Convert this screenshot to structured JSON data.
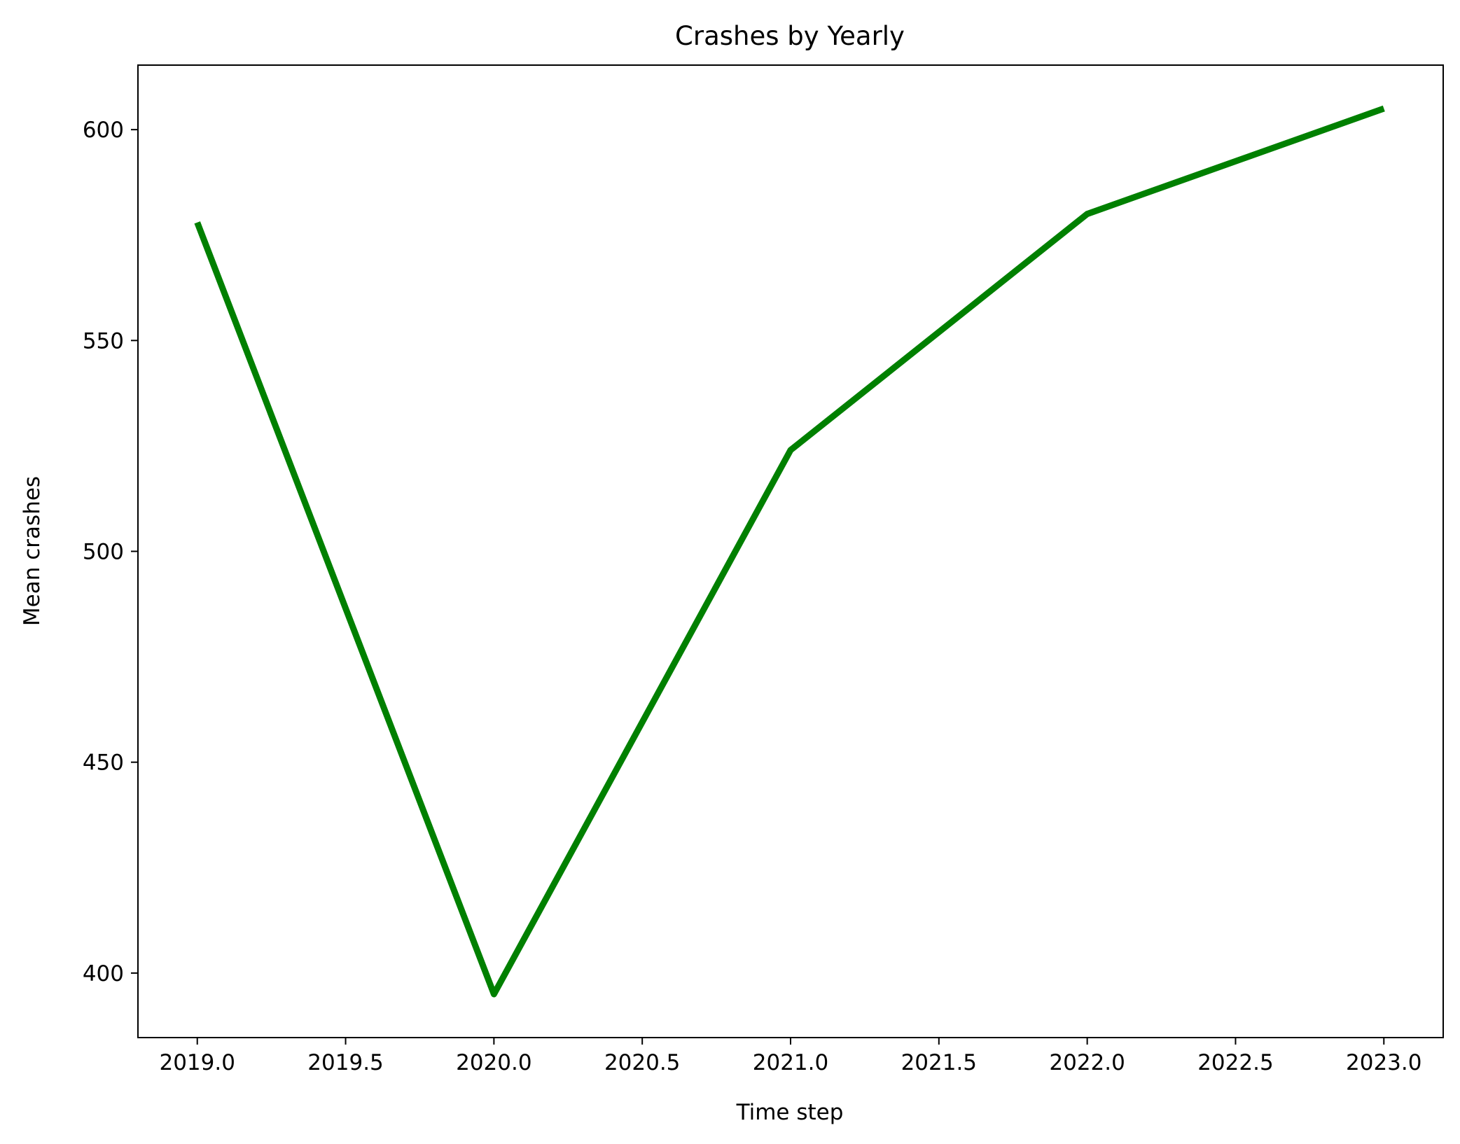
{
  "chart_data": {
    "type": "line",
    "title": "Crashes by Yearly",
    "xlabel": "Time step",
    "ylabel": "Mean crashes",
    "xlim": [
      2018.8,
      2023.2
    ],
    "ylim": [
      384.7,
      615.3
    ],
    "xticks": [
      2019.0,
      2019.5,
      2020.0,
      2020.5,
      2021.0,
      2021.5,
      2022.0,
      2022.5,
      2023.0
    ],
    "xtick_labels": [
      "2019.0",
      "2019.5",
      "2020.0",
      "2020.5",
      "2021.0",
      "2021.5",
      "2022.0",
      "2022.5",
      "2023.0"
    ],
    "yticks": [
      400,
      450,
      500,
      550,
      600
    ],
    "ytick_labels": [
      "400",
      "450",
      "500",
      "550",
      "600"
    ],
    "grid": false,
    "series": [
      {
        "color": "#008000",
        "x": [
          2019,
          2020,
          2021,
          2022,
          2023
        ],
        "y": [
          578,
          395,
          524,
          580,
          605
        ]
      }
    ]
  }
}
